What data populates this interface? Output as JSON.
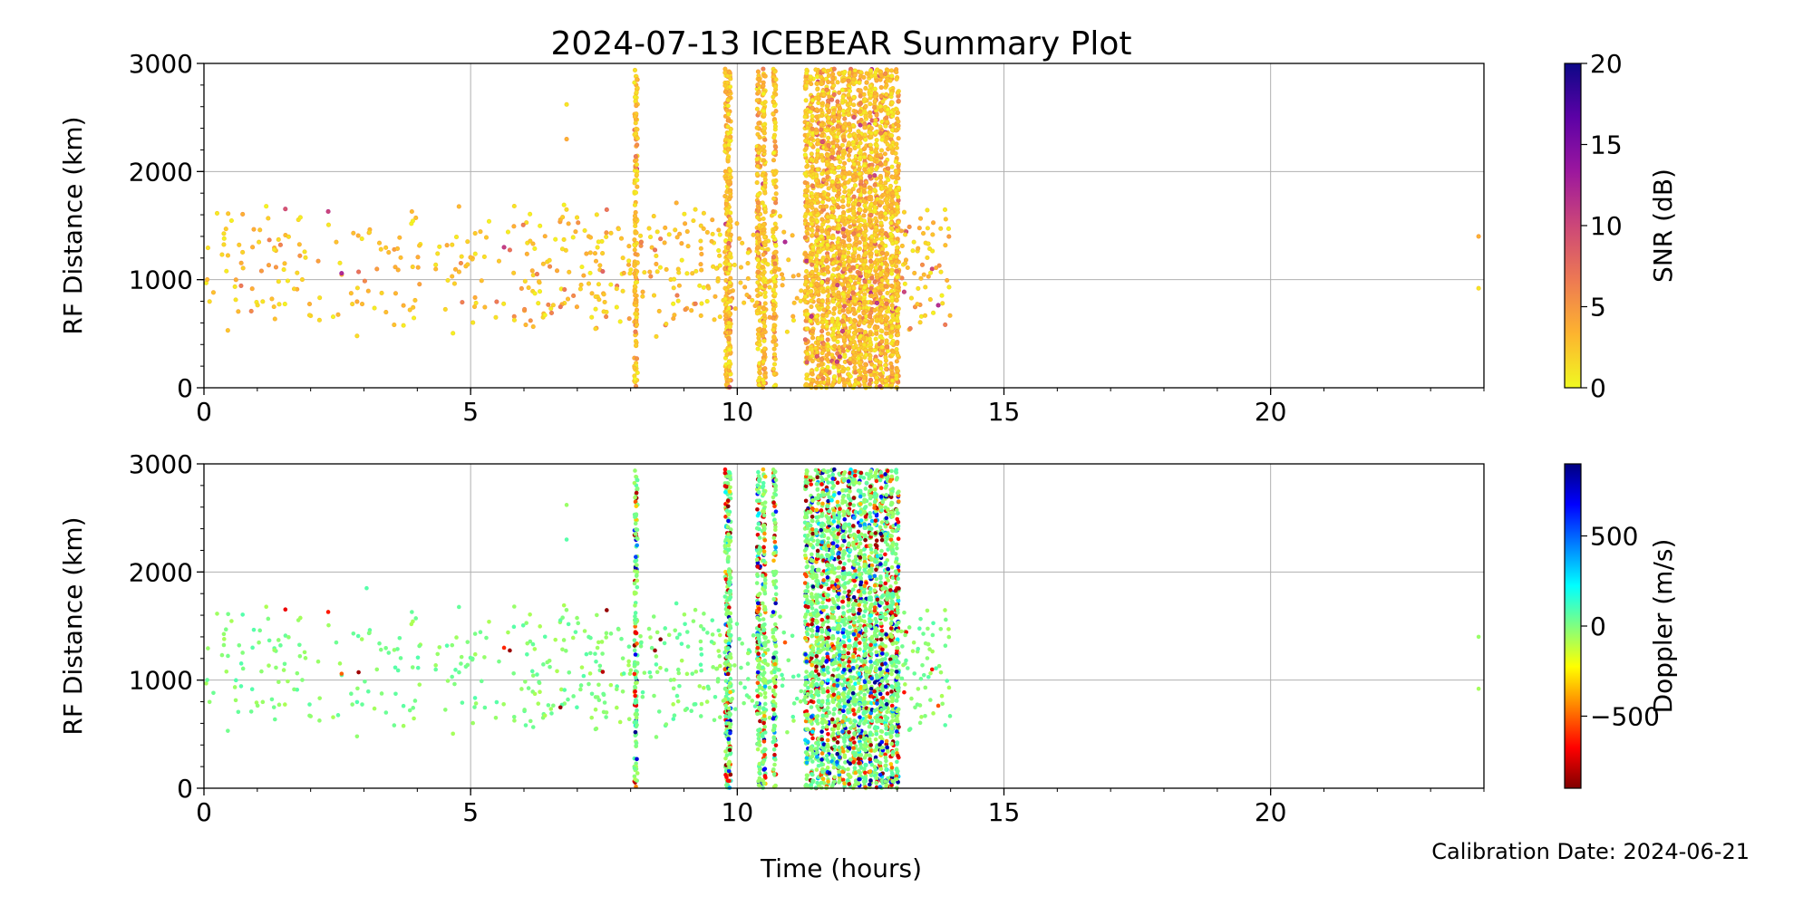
{
  "figure": {
    "title": "2024-07-13 ICEBEAR Summary Plot",
    "footer": "Calibration Date: 2024-06-21",
    "xlabel": "Time (hours)"
  },
  "colors": {
    "snr_colormap": [
      "#f0f921",
      "#fdb42f",
      "#ed7953",
      "#cc4778",
      "#9c179e",
      "#5c01a6",
      "#0d0887"
    ],
    "doppler_colormap": [
      "#800000",
      "#ff0000",
      "#ff8000",
      "#ffff00",
      "#80ff80",
      "#00ffff",
      "#0080ff",
      "#0000ff",
      "#000080"
    ],
    "grid": "#b0b0b0"
  },
  "chart_data": [
    {
      "type": "scatter",
      "name": "snr-panel",
      "ylabel": "RF Distance (km)",
      "xlim": [
        0,
        24
      ],
      "ylim": [
        0,
        3000
      ],
      "xticks": [
        "0",
        "5",
        "10",
        "15",
        "20"
      ],
      "yticks": [
        "0",
        "1000",
        "2000",
        "3000"
      ],
      "grid": true,
      "colorbar": {
        "label": "SNR (dB)",
        "range": [
          0,
          20
        ],
        "ticks": [
          "0",
          "5",
          "10",
          "15",
          "20"
        ]
      },
      "scattered_time_range": [
        0,
        14
      ],
      "scattered_distance_range": [
        300,
        1900
      ],
      "dense_columns_hours": [
        8.1,
        9.8,
        9.85,
        10.4,
        10.5,
        10.7,
        11.3,
        11.4,
        11.5,
        11.6,
        11.7,
        11.8,
        11.9,
        12.0,
        12.1,
        12.2,
        12.3,
        12.4,
        12.5,
        12.6,
        12.7,
        12.8,
        12.9,
        13.0
      ],
      "dense_column_distance_range": [
        0,
        2950
      ],
      "isolated_points": [
        {
          "x": 6.8,
          "y": 2620
        },
        {
          "x": 6.8,
          "y": 2300
        },
        {
          "x": 23.9,
          "y": 1400
        },
        {
          "x": 23.9,
          "y": 920
        }
      ],
      "value_range": [
        0,
        10
      ]
    },
    {
      "type": "scatter",
      "name": "doppler-panel",
      "ylabel": "RF Distance (km)",
      "xlim": [
        0,
        24
      ],
      "ylim": [
        0,
        3000
      ],
      "xticks": [
        "0",
        "5",
        "10",
        "15",
        "20"
      ],
      "yticks": [
        "0",
        "1000",
        "2000",
        "3000"
      ],
      "grid": true,
      "colorbar": {
        "label": "Doppler (m/s)",
        "range": [
          -900,
          900
        ],
        "ticks": [
          "−500",
          "0",
          "500"
        ],
        "tick_values": [
          -500,
          0,
          500
        ]
      },
      "scattered_time_range": [
        0,
        14
      ],
      "scattered_distance_range": [
        300,
        1900
      ],
      "dense_columns_hours": [
        8.1,
        9.8,
        9.85,
        10.4,
        10.5,
        10.7,
        11.3,
        11.4,
        11.5,
        11.6,
        11.7,
        11.8,
        11.9,
        12.0,
        12.1,
        12.2,
        12.3,
        12.4,
        12.5,
        12.6,
        12.7,
        12.8,
        12.9,
        13.0
      ],
      "dense_column_distance_range": [
        0,
        2950
      ],
      "isolated_points": [
        {
          "x": 6.8,
          "y": 2620
        },
        {
          "x": 6.8,
          "y": 2300
        },
        {
          "x": 3.05,
          "y": 1850
        },
        {
          "x": 23.9,
          "y": 1400
        },
        {
          "x": 23.9,
          "y": 920
        }
      ],
      "value_range": [
        -900,
        900
      ]
    }
  ]
}
